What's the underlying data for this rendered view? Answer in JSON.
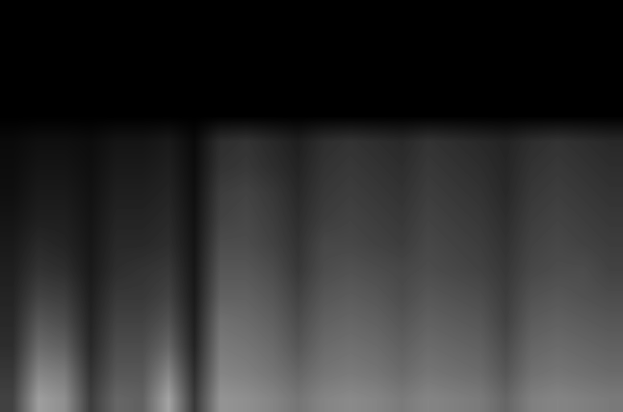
{
  "chart_data": {
    "type": "heatmap",
    "tick_labels": false,
    "color": "gray",
    "color_range": [
      0,
      100
    ],
    "cells": [
      [
        0,
        0,
        0,
        0,
        0,
        0,
        0,
        0,
        0,
        0,
        0,
        0,
        0,
        0,
        0,
        0,
        0,
        0,
        0,
        0,
        0,
        0,
        0,
        0
      ],
      [
        0,
        0,
        0,
        0,
        0,
        0,
        0,
        0,
        0,
        0,
        0,
        0,
        0,
        0,
        0,
        0,
        0,
        0,
        0,
        0,
        0,
        0,
        0,
        0
      ],
      [
        0,
        0,
        0,
        0,
        0,
        0,
        0,
        0,
        0,
        0,
        0,
        0,
        0,
        0,
        0,
        0,
        0,
        0,
        0,
        0,
        0,
        0,
        0,
        0
      ],
      [
        0,
        0,
        0,
        0,
        0,
        0,
        0,
        0,
        0,
        0,
        0,
        0,
        0,
        0,
        0,
        0,
        0,
        0,
        0,
        0,
        0,
        0,
        0,
        0
      ],
      [
        0,
        0,
        0,
        0,
        0,
        0,
        0,
        0,
        0,
        0,
        0,
        0,
        0,
        0,
        0,
        0,
        0,
        0,
        0,
        0,
        0,
        0,
        0,
        0
      ],
      [
        4,
        6,
        6,
        5,
        8,
        8,
        10,
        4,
        18,
        20,
        16,
        12,
        18,
        20,
        18,
        16,
        20,
        18,
        16,
        14,
        18,
        20,
        18,
        16
      ],
      [
        5,
        8,
        8,
        6,
        10,
        10,
        12,
        5,
        20,
        22,
        18,
        14,
        20,
        22,
        20,
        18,
        22,
        20,
        18,
        15,
        20,
        22,
        20,
        18
      ],
      [
        6,
        10,
        10,
        7,
        12,
        12,
        14,
        6,
        24,
        26,
        22,
        16,
        22,
        24,
        22,
        20,
        24,
        22,
        20,
        16,
        22,
        24,
        22,
        20
      ],
      [
        8,
        12,
        12,
        8,
        14,
        14,
        16,
        7,
        26,
        28,
        24,
        18,
        24,
        26,
        24,
        22,
        26,
        24,
        22,
        18,
        24,
        26,
        24,
        22
      ],
      [
        10,
        16,
        14,
        9,
        16,
        16,
        18,
        8,
        30,
        30,
        26,
        20,
        28,
        28,
        26,
        24,
        28,
        26,
        24,
        20,
        26,
        28,
        26,
        24
      ],
      [
        12,
        20,
        18,
        10,
        18,
        20,
        22,
        9,
        34,
        34,
        30,
        22,
        30,
        32,
        30,
        28,
        30,
        28,
        26,
        22,
        28,
        30,
        30,
        26
      ],
      [
        14,
        26,
        24,
        12,
        22,
        22,
        26,
        10,
        38,
        38,
        34,
        26,
        34,
        36,
        34,
        30,
        34,
        32,
        30,
        24,
        32,
        34,
        32,
        30
      ],
      [
        16,
        34,
        30,
        14,
        26,
        26,
        32,
        12,
        44,
        42,
        38,
        30,
        38,
        40,
        38,
        34,
        38,
        36,
        34,
        26,
        36,
        38,
        36,
        34
      ],
      [
        18,
        42,
        38,
        16,
        30,
        30,
        40,
        14,
        48,
        46,
        42,
        34,
        42,
        44,
        42,
        38,
        42,
        40,
        38,
        30,
        40,
        42,
        40,
        38
      ],
      [
        22,
        52,
        48,
        20,
        34,
        34,
        52,
        18,
        52,
        50,
        46,
        40,
        46,
        48,
        46,
        42,
        46,
        44,
        42,
        34,
        44,
        46,
        44,
        42
      ],
      [
        26,
        62,
        56,
        24,
        40,
        38,
        64,
        22,
        58,
        56,
        52,
        46,
        52,
        54,
        52,
        48,
        52,
        50,
        48,
        40,
        50,
        52,
        50,
        48
      ]
    ]
  }
}
